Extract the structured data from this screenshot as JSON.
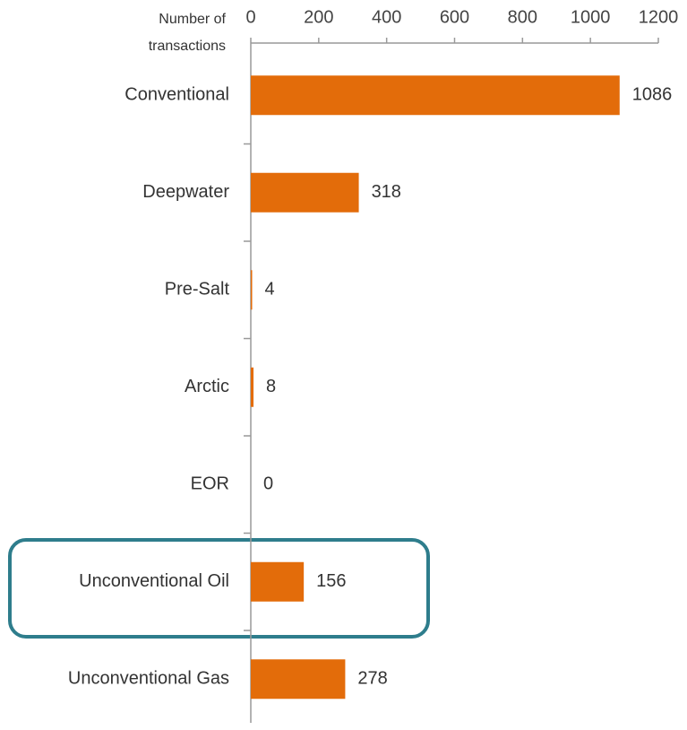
{
  "chart_data": {
    "type": "bar",
    "orientation": "horizontal",
    "axis_label": [
      "Number of",
      "transactions"
    ],
    "categories": [
      "Conventional",
      "Deepwater",
      "Pre-Salt",
      "Arctic",
      "EOR",
      "Unconventional Oil",
      "Unconventional Gas"
    ],
    "values": [
      1086,
      318,
      4,
      8,
      0,
      156,
      278
    ],
    "color": "#e36c0a",
    "xlim": [
      0,
      1200
    ],
    "xticks": [
      0,
      200,
      400,
      600,
      800,
      1000,
      1200
    ],
    "grid": false
  }
}
